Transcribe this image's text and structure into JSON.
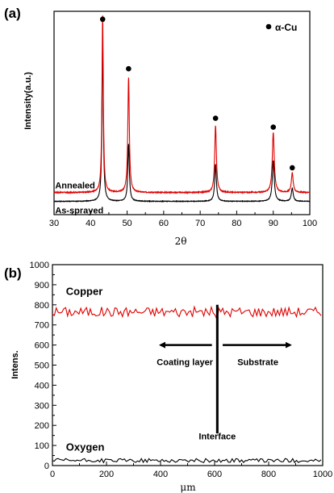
{
  "chart_data": [
    {
      "panel_label": "(a)",
      "type": "line",
      "title": "",
      "xlabel": "2θ",
      "ylabel": "Intensity(a.u.)",
      "xlim": [
        30,
        100
      ],
      "x_ticks": [
        30,
        40,
        50,
        60,
        70,
        80,
        90,
        100
      ],
      "grid": false,
      "legend": {
        "placement": "top-right",
        "marker": "filled-circle",
        "label": "α-Cu"
      },
      "series": [
        {
          "name": "Annealed",
          "color": "#e00000",
          "baseline": 1.0,
          "noise": 0.05,
          "peaks": [
            {
              "x": 43.3,
              "height": 20.0,
              "width": 0.22
            },
            {
              "x": 50.4,
              "height": 13.0,
              "width": 0.25
            },
            {
              "x": 74.2,
              "height": 7.6,
              "width": 0.28
            },
            {
              "x": 90.0,
              "height": 6.8,
              "width": 0.32
            },
            {
              "x": 95.2,
              "height": 2.2,
              "width": 0.3
            }
          ]
        },
        {
          "name": "As-sprayed",
          "color": "#000000",
          "baseline": 0.0,
          "noise": 0.03,
          "peaks": [
            {
              "x": 43.3,
              "height": 18.0,
              "width": 0.22
            },
            {
              "x": 50.4,
              "height": 6.5,
              "width": 0.25
            },
            {
              "x": 74.2,
              "height": 4.2,
              "width": 0.28
            },
            {
              "x": 90.0,
              "height": 4.6,
              "width": 0.32
            },
            {
              "x": 95.2,
              "height": 1.5,
              "width": 0.3
            }
          ]
        }
      ],
      "ylim": [
        -1.5,
        21.5
      ],
      "peak_markers": [
        {
          "x": 43.3,
          "y": 20.6
        },
        {
          "x": 50.4,
          "y": 15.0
        },
        {
          "x": 74.2,
          "y": 9.4
        },
        {
          "x": 90.0,
          "y": 8.4
        },
        {
          "x": 95.2,
          "y": 3.8
        }
      ],
      "curve_labels": [
        "Annealed",
        "As-sprayed"
      ]
    },
    {
      "panel_label": "(b)",
      "type": "line",
      "title": "",
      "xlabel": "μm",
      "ylabel": "Intens.",
      "xlim": [
        0,
        1000
      ],
      "ylim": [
        0,
        1000
      ],
      "x_ticks": [
        0,
        200,
        400,
        600,
        800,
        1000
      ],
      "y_ticks": [
        0,
        100,
        200,
        300,
        400,
        500,
        600,
        700,
        800,
        900,
        1000
      ],
      "grid": false,
      "series": [
        {
          "name": "Copper",
          "color": "#e00000",
          "mean": 765,
          "amplitude": 25,
          "min_point": {
            "x": 610,
            "y": 725
          }
        },
        {
          "name": "Oxygen",
          "color": "#000000",
          "mean": 25,
          "amplitude": 10
        }
      ],
      "annotations": {
        "copper_label": "Copper",
        "oxygen_label": "Oxygen",
        "coating_label": "Coating layer",
        "substrate_label": "Substrate",
        "interface_label": "Interface",
        "interface_x": 610,
        "interface_y_range": [
          160,
          800
        ],
        "arrow_y": 600,
        "left_arrow_x": [
          590,
          400
        ],
        "right_arrow_x": [
          630,
          880
        ]
      }
    }
  ]
}
